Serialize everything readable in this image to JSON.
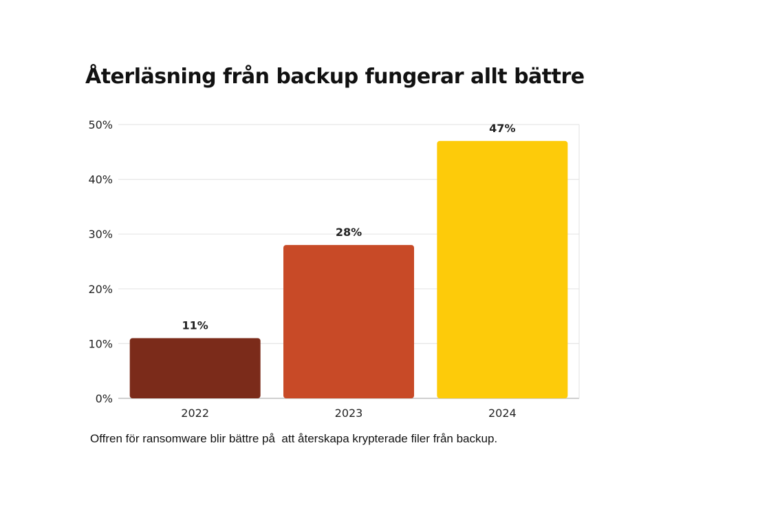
{
  "chart_data": {
    "type": "bar",
    "title": "Återläsning från backup fungerar allt bättre",
    "caption": "Offren för ransomware blir bättre på  att återskapa krypterade filer från backup.",
    "categories": [
      "2022",
      "2023",
      "2024"
    ],
    "values": [
      11,
      28,
      47
    ],
    "value_labels": [
      "11%",
      "28%",
      "47%"
    ],
    "colors": [
      "#7b2b1a",
      "#c84a27",
      "#fdcb0a"
    ],
    "ylim": [
      0,
      50
    ],
    "yticks": [
      0,
      10,
      20,
      30,
      40,
      50
    ],
    "ytick_labels": [
      "0%",
      "10%",
      "20%",
      "30%",
      "40%",
      "50%"
    ],
    "xlabel": "",
    "ylabel": "",
    "grid": true,
    "legend": "none"
  }
}
